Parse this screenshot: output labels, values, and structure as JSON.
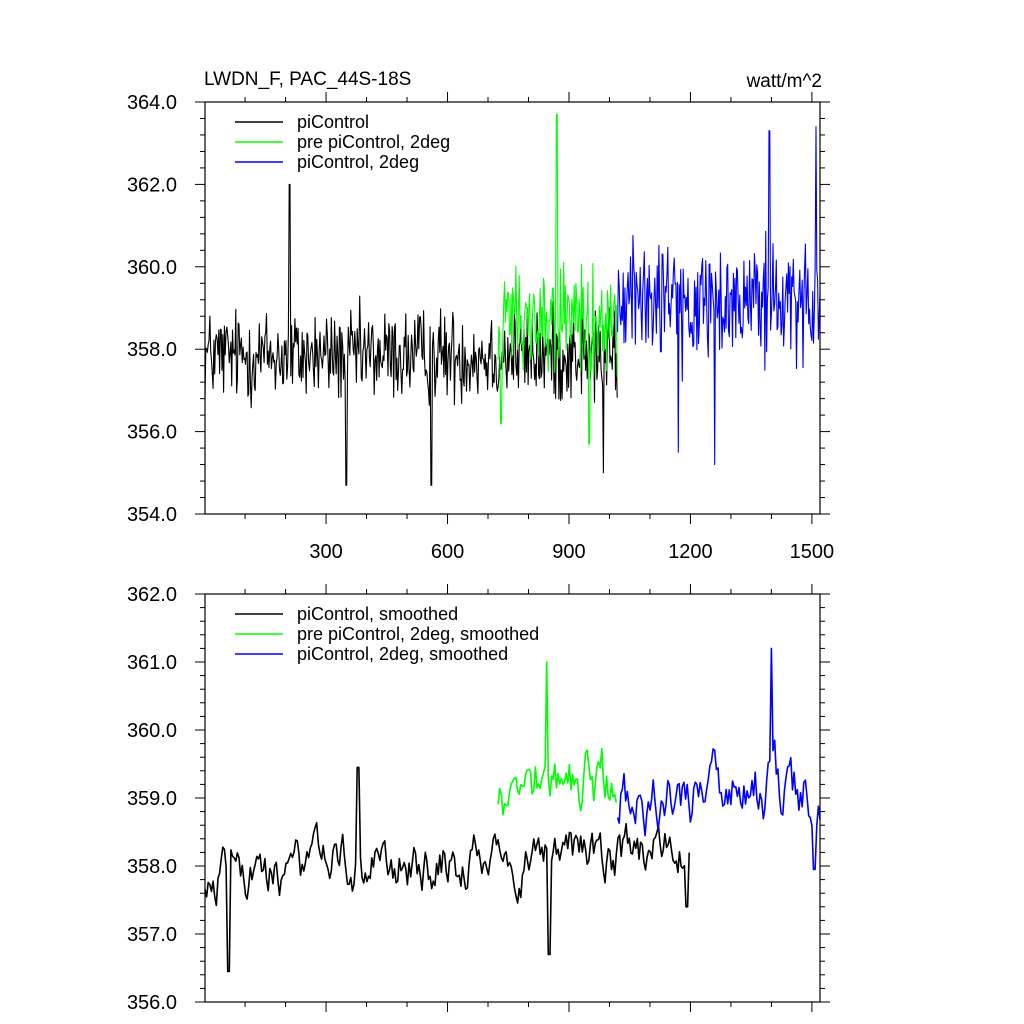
{
  "title_left": "LWDN_F, PAC_44S-18S",
  "title_right": "watt/m^2",
  "chart_data": [
    {
      "type": "line",
      "name": "top-panel",
      "xlim": [
        1,
        1520
      ],
      "ylim": [
        354.0,
        364.0
      ],
      "x_ticks": [
        300,
        600,
        900,
        1200,
        1500
      ],
      "x_tick_labels": [
        "300",
        "600",
        "900",
        "1200",
        "1500"
      ],
      "y_ticks": [
        354,
        356,
        358,
        360,
        362,
        364
      ],
      "y_tick_labels": [
        "354.0",
        "356.0",
        "358.0",
        "360.0",
        "362.0",
        "364.0"
      ],
      "grid": false,
      "legend_position": "top-left",
      "series": [
        {
          "name": "piControl",
          "color": "#000000",
          "x_start": 1,
          "x_end": 1020,
          "mean": 357.85,
          "noise": 1.05,
          "spikes": [
            [
              210,
              362.0
            ],
            [
              350,
              354.7
            ],
            [
              560,
              354.7
            ],
            [
              985,
              355.0
            ]
          ]
        },
        {
          "name": "pre piControl, 2deg",
          "color": "#00ff00",
          "x_start": 725,
          "x_end": 1020,
          "mean": 358.8,
          "noise": 1.35,
          "spikes": [
            [
              870,
              363.7
            ],
            [
              950,
              355.7
            ],
            [
              732,
              356.2
            ]
          ]
        },
        {
          "name": "piControl, 2deg",
          "color": "#0000ff",
          "x_start": 1020,
          "x_end": 1520,
          "mean": 359.2,
          "noise": 1.35,
          "spikes": [
            [
              1510,
              363.4
            ],
            [
              1395,
              363.3
            ],
            [
              1260,
              355.2
            ],
            [
              1170,
              355.5
            ]
          ]
        }
      ]
    },
    {
      "type": "line",
      "name": "bottom-panel",
      "xlim": [
        1,
        1520
      ],
      "ylim": [
        356.0,
        362.0
      ],
      "x_ticks": [
        300,
        600,
        900,
        1200,
        1500
      ],
      "y_ticks": [
        356,
        357,
        358,
        359,
        360,
        361,
        362
      ],
      "y_tick_labels": [
        "356.0",
        "357.0",
        "358.0",
        "359.0",
        "360.0",
        "361.0",
        "362.0"
      ],
      "grid": false,
      "legend_position": "top-left",
      "series": [
        {
          "name": "piControl, smoothed",
          "color": "#000000",
          "x_start": 1,
          "x_end": 1200,
          "mean": 357.9,
          "noise": 0.45,
          "spikes": [
            [
              60,
              356.45
            ],
            [
              380,
              359.45
            ],
            [
              850,
              356.7
            ],
            [
              1190,
              357.4
            ]
          ]
        },
        {
          "name": "pre piControl, 2deg, smoothed",
          "color": "#00ff00",
          "x_start": 725,
          "x_end": 1020,
          "mean": 359.2,
          "noise": 0.55,
          "spikes": [
            [
              845,
              361.0
            ]
          ]
        },
        {
          "name": "piControl, 2deg, smoothed",
          "color": "#0000ff",
          "x_start": 1020,
          "x_end": 1520,
          "mean": 359.0,
          "noise": 0.55,
          "spikes": [
            [
              1400,
              361.2
            ],
            [
              1505,
              357.95
            ]
          ]
        }
      ]
    }
  ]
}
